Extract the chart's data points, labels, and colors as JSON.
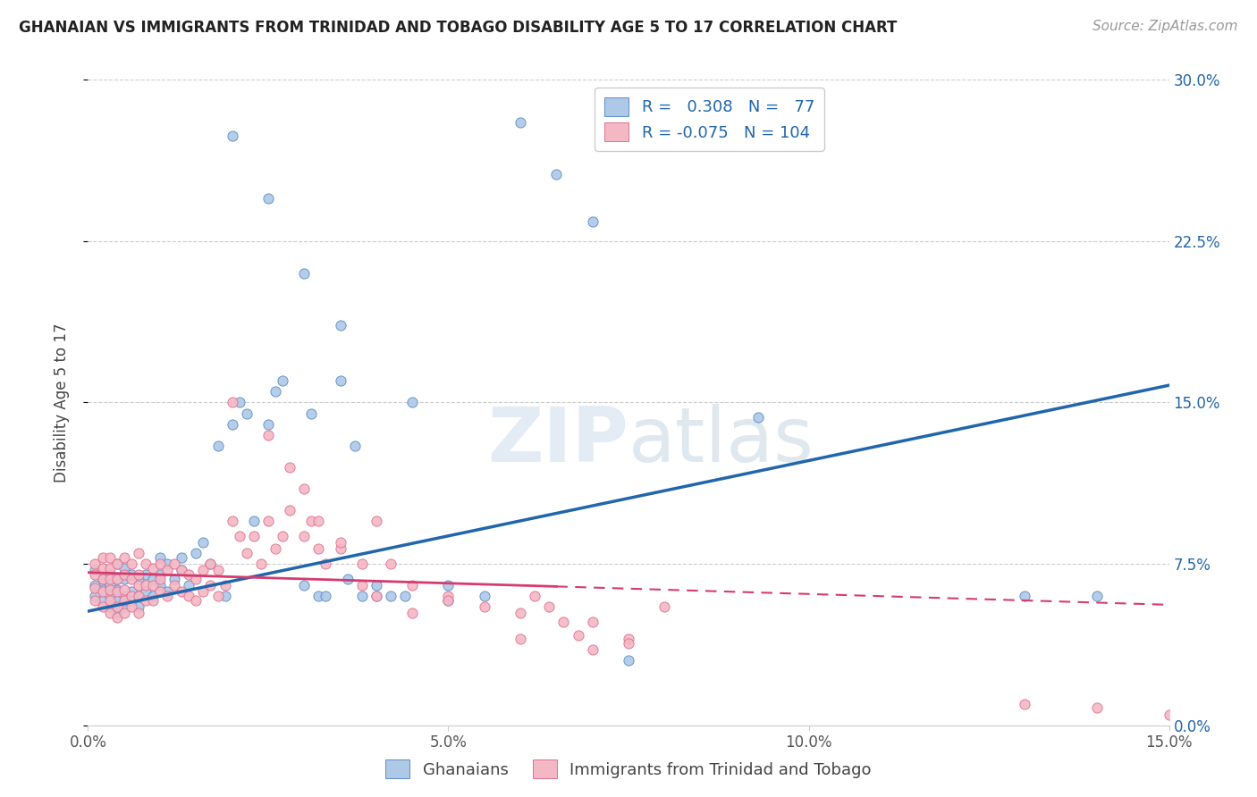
{
  "title": "GHANAIAN VS IMMIGRANTS FROM TRINIDAD AND TOBAGO DISABILITY AGE 5 TO 17 CORRELATION CHART",
  "source": "Source: ZipAtlas.com",
  "ylabel": "Disability Age 5 to 17",
  "xlim": [
    0.0,
    0.15
  ],
  "ylim": [
    0.0,
    0.3
  ],
  "xticks": [
    0.0,
    0.05,
    0.1,
    0.15
  ],
  "xtick_labels": [
    "0.0%",
    "5.0%",
    "10.0%",
    "15.0%"
  ],
  "yticks": [
    0.0,
    0.075,
    0.15,
    0.225,
    0.3
  ],
  "ytick_labels_right": [
    "0.0%",
    "7.5%",
    "15.0%",
    "22.5%",
    "30.0%"
  ],
  "ghanaian_R": 0.308,
  "ghanaian_N": 77,
  "tt_R": -0.075,
  "tt_N": 104,
  "blue_color": "#aec8e8",
  "blue_edge_color": "#5b8ec4",
  "blue_line_color": "#2166ac",
  "pink_color": "#f4b8c4",
  "pink_edge_color": "#e07090",
  "pink_line_color": "#d63b6e",
  "watermark": "ZIPatlas",
  "legend_label_1": "Ghanaians",
  "legend_label_2": "Immigrants from Trinidad and Tobago",
  "blue_line_x0": 0.0,
  "blue_line_y0": 0.053,
  "blue_line_x1": 0.15,
  "blue_line_y1": 0.158,
  "pink_line_x0": 0.0,
  "pink_line_y0": 0.071,
  "pink_line_x1": 0.15,
  "pink_line_y1": 0.056,
  "ghanaian_x": [
    0.001,
    0.001,
    0.001,
    0.002,
    0.002,
    0.002,
    0.003,
    0.003,
    0.003,
    0.003,
    0.004,
    0.004,
    0.004,
    0.004,
    0.004,
    0.005,
    0.005,
    0.005,
    0.005,
    0.006,
    0.006,
    0.006,
    0.007,
    0.007,
    0.007,
    0.008,
    0.008,
    0.009,
    0.009,
    0.01,
    0.01,
    0.01,
    0.011,
    0.011,
    0.012,
    0.013,
    0.013,
    0.014,
    0.015,
    0.016,
    0.017,
    0.018,
    0.019,
    0.02,
    0.021,
    0.022,
    0.023,
    0.025,
    0.026,
    0.027,
    0.03,
    0.031,
    0.032,
    0.033,
    0.035,
    0.036,
    0.037,
    0.04,
    0.042,
    0.044,
    0.045,
    0.05,
    0.05,
    0.055,
    0.06,
    0.065,
    0.07,
    0.075,
    0.02,
    0.025,
    0.03,
    0.035,
    0.038,
    0.04,
    0.093,
    0.13,
    0.14
  ],
  "ghanaian_y": [
    0.06,
    0.065,
    0.072,
    0.058,
    0.063,
    0.068,
    0.055,
    0.06,
    0.065,
    0.07,
    0.052,
    0.058,
    0.063,
    0.068,
    0.075,
    0.055,
    0.06,
    0.068,
    0.073,
    0.058,
    0.062,
    0.07,
    0.055,
    0.06,
    0.068,
    0.062,
    0.07,
    0.06,
    0.068,
    0.065,
    0.07,
    0.078,
    0.062,
    0.075,
    0.068,
    0.072,
    0.078,
    0.065,
    0.08,
    0.085,
    0.075,
    0.13,
    0.06,
    0.14,
    0.15,
    0.145,
    0.095,
    0.14,
    0.155,
    0.16,
    0.065,
    0.145,
    0.06,
    0.06,
    0.16,
    0.068,
    0.13,
    0.065,
    0.06,
    0.06,
    0.15,
    0.065,
    0.058,
    0.06,
    0.28,
    0.256,
    0.234,
    0.03,
    0.274,
    0.245,
    0.21,
    0.186,
    0.06,
    0.06,
    0.143,
    0.06,
    0.06
  ],
  "tt_x": [
    0.001,
    0.001,
    0.001,
    0.001,
    0.002,
    0.002,
    0.002,
    0.002,
    0.002,
    0.003,
    0.003,
    0.003,
    0.003,
    0.003,
    0.003,
    0.004,
    0.004,
    0.004,
    0.004,
    0.004,
    0.005,
    0.005,
    0.005,
    0.005,
    0.005,
    0.006,
    0.006,
    0.006,
    0.006,
    0.007,
    0.007,
    0.007,
    0.007,
    0.007,
    0.008,
    0.008,
    0.008,
    0.009,
    0.009,
    0.009,
    0.01,
    0.01,
    0.01,
    0.011,
    0.011,
    0.012,
    0.012,
    0.013,
    0.013,
    0.014,
    0.014,
    0.015,
    0.015,
    0.016,
    0.016,
    0.017,
    0.017,
    0.018,
    0.018,
    0.019,
    0.02,
    0.021,
    0.022,
    0.023,
    0.024,
    0.025,
    0.026,
    0.027,
    0.028,
    0.03,
    0.031,
    0.032,
    0.033,
    0.035,
    0.038,
    0.04,
    0.042,
    0.045,
    0.05,
    0.055,
    0.06,
    0.07,
    0.075,
    0.08,
    0.02,
    0.025,
    0.028,
    0.03,
    0.032,
    0.035,
    0.038,
    0.04,
    0.045,
    0.05,
    0.06,
    0.062,
    0.064,
    0.066,
    0.068,
    0.07,
    0.075,
    0.13,
    0.14,
    0.15
  ],
  "tt_y": [
    0.058,
    0.064,
    0.07,
    0.075,
    0.055,
    0.062,
    0.068,
    0.073,
    0.078,
    0.052,
    0.058,
    0.063,
    0.068,
    0.073,
    0.078,
    0.05,
    0.055,
    0.062,
    0.068,
    0.075,
    0.052,
    0.058,
    0.063,
    0.07,
    0.078,
    0.055,
    0.06,
    0.068,
    0.075,
    0.052,
    0.06,
    0.065,
    0.07,
    0.08,
    0.058,
    0.065,
    0.075,
    0.058,
    0.065,
    0.073,
    0.062,
    0.068,
    0.075,
    0.06,
    0.072,
    0.065,
    0.075,
    0.062,
    0.072,
    0.06,
    0.07,
    0.058,
    0.068,
    0.062,
    0.072,
    0.065,
    0.075,
    0.06,
    0.072,
    0.065,
    0.095,
    0.088,
    0.08,
    0.088,
    0.075,
    0.095,
    0.082,
    0.088,
    0.1,
    0.088,
    0.095,
    0.082,
    0.075,
    0.082,
    0.065,
    0.095,
    0.075,
    0.065,
    0.06,
    0.055,
    0.04,
    0.048,
    0.04,
    0.055,
    0.15,
    0.135,
    0.12,
    0.11,
    0.095,
    0.085,
    0.075,
    0.06,
    0.052,
    0.058,
    0.052,
    0.06,
    0.055,
    0.048,
    0.042,
    0.035,
    0.038,
    0.01,
    0.008,
    0.005
  ]
}
